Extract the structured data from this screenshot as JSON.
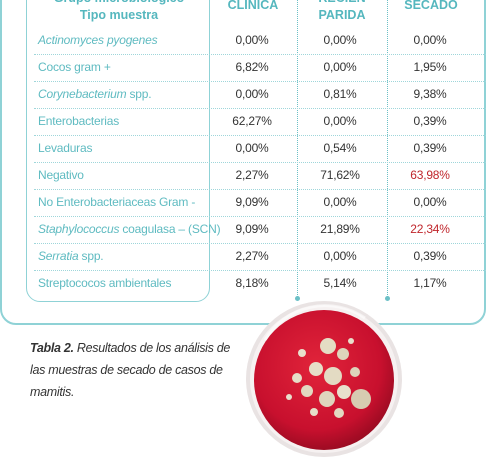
{
  "table": {
    "header": {
      "col_label_line1": "Grupo microbiológico",
      "col_label_line2": "Tipo muestra",
      "col1_line1": "CLÍNICA",
      "col2_line1": "RECIÉN",
      "col2_line2": "PARIDA",
      "col3_line1": "SECADO"
    },
    "rows": [
      {
        "label_it": "Actinomyces pyogenes",
        "label_rest": "",
        "v1": "0,00%",
        "v2": "0,00%",
        "v3": "0,00%",
        "v3_highlight": false
      },
      {
        "label_it": "",
        "label_rest": "Cocos gram +",
        "v1": "6,82%",
        "v2": "0,00%",
        "v3": "1,95%",
        "v3_highlight": false
      },
      {
        "label_it": "Corynebacterium",
        "label_rest": " spp.",
        "v1": "0,00%",
        "v2": "0,81%",
        "v3": "9,38%",
        "v3_highlight": false
      },
      {
        "label_it": "",
        "label_rest": "Enterobacterias",
        "v1": "62,27%",
        "v2": "0,00%",
        "v3": "0,39%",
        "v3_highlight": false
      },
      {
        "label_it": "",
        "label_rest": "Levaduras",
        "v1": "0,00%",
        "v2": "0,54%",
        "v3": "0,39%",
        "v3_highlight": false
      },
      {
        "label_it": "",
        "label_rest": "Negativo",
        "v1": "2,27%",
        "v2": "71,62%",
        "v3": "63,98%",
        "v3_highlight": true
      },
      {
        "label_it": "",
        "label_rest": "No Enterobacteriaceas Gram -",
        "v1": "9,09%",
        "v2": "0,00%",
        "v3": "0,00%",
        "v3_highlight": false
      },
      {
        "label_it": "Staphylococcus",
        "label_rest": " coagulasa – (SCN)",
        "v1": "9,09%",
        "v2": "21,89%",
        "v3": "22,34%",
        "v3_highlight": true
      },
      {
        "label_it": "Serratia",
        "label_rest": " spp.",
        "v1": "2,27%",
        "v2": "0,00%",
        "v3": "0,39%",
        "v3_highlight": false
      },
      {
        "label_it": "",
        "label_rest": "Streptococos ambientales",
        "v1": "8,18%",
        "v2": "5,14%",
        "v3": "1,17%",
        "v3_highlight": false
      }
    ]
  },
  "caption": {
    "bold": "Tabla 2.",
    "text": " Resultados de los análisis de las muestras de secado de casos de mamitis."
  },
  "colors": {
    "accent": "#55b7be",
    "highlight": "#c0262c",
    "agar": "#c8102e"
  }
}
